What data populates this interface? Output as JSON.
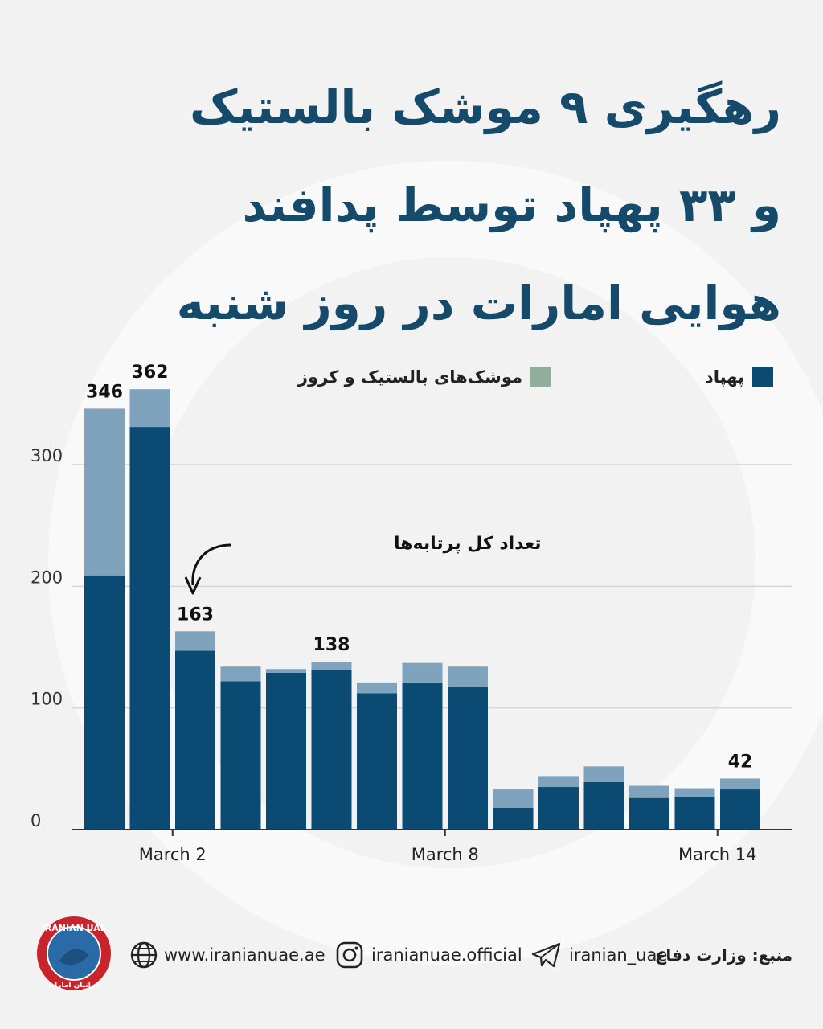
{
  "title": {
    "line1": "رهگیری ۹ موشک بالستیک",
    "line2": "و ۳۳ پهپاد توسط پدافند",
    "line3": "هوایی امارات در روز شنبه"
  },
  "legend": {
    "drones": "پهپاد",
    "missiles": "موشک‌های بالستیک و کروز"
  },
  "annotation": "تعداد کل پرتابه‌ها",
  "colors": {
    "drones": "#0b4a73",
    "missiles": "#7fa3bd",
    "missiles_legend": "#8fae9b",
    "title": "#154a6b",
    "background": "#f2f2f2"
  },
  "chart_data": {
    "type": "bar",
    "stacked": true,
    "ylim": [
      0,
      360
    ],
    "yticks": [
      0,
      100,
      200,
      300
    ],
    "x_tick_labels": [
      {
        "index": 2,
        "label": "March 2"
      },
      {
        "index": 8,
        "label": "March 8"
      },
      {
        "index": 14,
        "label": "March 14"
      }
    ],
    "series": [
      {
        "name": "پهپاد",
        "values": [
          209,
          331,
          147,
          122,
          129,
          131,
          112,
          121,
          117,
          18,
          35,
          39,
          26,
          27,
          33
        ]
      },
      {
        "name": "موشک‌های بالستیک و کروز",
        "values": [
          137,
          31,
          16,
          12,
          3,
          7,
          9,
          16,
          17,
          15,
          9,
          13,
          10,
          7,
          9
        ]
      }
    ],
    "data_labels": [
      {
        "index": 0,
        "label": "346"
      },
      {
        "index": 1,
        "label": "362"
      },
      {
        "index": 2,
        "label": "163"
      },
      {
        "index": 5,
        "label": "138"
      },
      {
        "index": 14,
        "label": "42"
      }
    ]
  },
  "footer": {
    "website": "www.iranianuae.ae",
    "instagram": "iranianuae.official",
    "telegram": "iranian_uae",
    "source": "منبع: وزارت دفاع",
    "logo_text_top": "IRANIAN UAE",
    "logo_text_bottom": "ایرانیان امارات"
  },
  "icons": {
    "globe": "globe-icon",
    "instagram": "instagram-icon",
    "telegram": "telegram-icon"
  }
}
